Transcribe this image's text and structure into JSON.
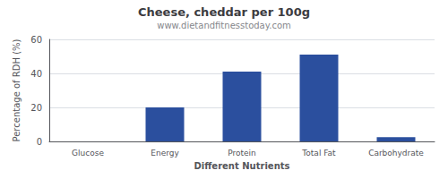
{
  "chart_data": {
    "type": "bar",
    "title": "Cheese, cheddar per 100g",
    "subtitle": "www.dietandfitnesstoday.com",
    "xlabel": "Different Nutrients",
    "ylabel": "Percentage of RDH (%)",
    "categories": [
      "Glucose",
      "Energy",
      "Protein",
      "Total Fat",
      "Carbohydrate"
    ],
    "values": [
      0,
      20,
      41,
      51,
      2.5
    ],
    "color": "#2b4f9e",
    "ylim": [
      0,
      60
    ],
    "yticks": [
      0,
      20,
      40,
      60
    ],
    "grid": true
  }
}
